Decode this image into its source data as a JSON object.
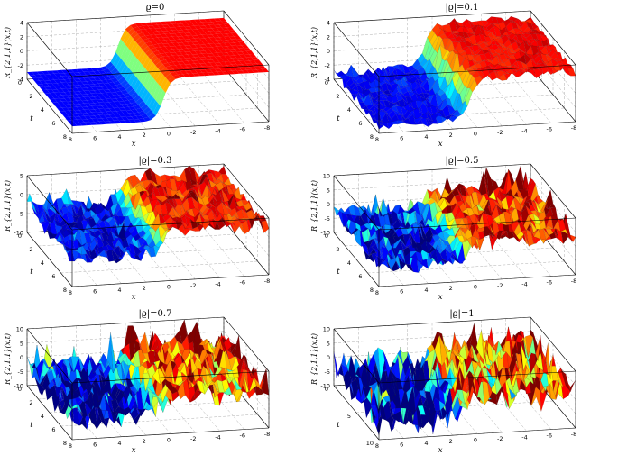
{
  "chart_data": [
    {
      "type": "surface",
      "title": "ϱ=0",
      "noise": 0,
      "zlabel": "R_{2,1,1}(x,t)",
      "xlabel": "x",
      "ylabel": "t",
      "xlim": [
        -8,
        8
      ],
      "ylim": [
        0,
        8
      ],
      "zlim": [
        -4,
        4
      ],
      "x_ticks": [
        "8",
        "6",
        "4",
        "2",
        "0",
        "-2",
        "-4",
        "-6",
        "-8"
      ],
      "y_ticks": [
        "0",
        "2",
        "4",
        "6",
        "8"
      ],
      "z_ticks": [
        "4",
        "2",
        "0",
        "-2",
        "-4"
      ],
      "surface": {
        "low": -3,
        "high": 3,
        "front_value": -3,
        "back_value": 3
      }
    },
    {
      "type": "surface",
      "title": "|ϱ|=0.1",
      "noise": 0.1,
      "zlabel": "R_{2,1,1}(x,t)",
      "xlabel": "x",
      "ylabel": "t",
      "xlim": [
        -8,
        8
      ],
      "ylim": [
        0,
        8
      ],
      "zlim": [
        -4,
        4
      ],
      "x_ticks": [
        "8",
        "6",
        "4",
        "2",
        "0",
        "-2",
        "-4",
        "-6",
        "-8"
      ],
      "y_ticks": [
        "0",
        "2",
        "4",
        "6",
        "8"
      ],
      "z_ticks": [
        "4",
        "2",
        "0",
        "-2",
        "-4"
      ],
      "surface": {
        "low": -3,
        "high": 3
      }
    },
    {
      "type": "surface",
      "title": "|ϱ|=0.3",
      "noise": 0.3,
      "zlabel": "R_{2,1,1}(x,t)",
      "xlabel": "x",
      "ylabel": "t",
      "xlim": [
        -8,
        8
      ],
      "ylim": [
        0,
        8
      ],
      "zlim": [
        -10,
        5
      ],
      "x_ticks": [
        "8",
        "6",
        "4",
        "2",
        "0",
        "-2",
        "-4",
        "-6",
        "-8"
      ],
      "y_ticks": [
        "0",
        "2",
        "4",
        "6",
        "8"
      ],
      "z_ticks": [
        "5",
        "0",
        "-5",
        "-10"
      ],
      "surface": {
        "low": -3,
        "high": 3
      }
    },
    {
      "type": "surface",
      "title": "|ϱ|=0.5",
      "noise": 0.5,
      "zlabel": "R_{2,1,1}(x,t)",
      "xlabel": "x",
      "ylabel": "t",
      "xlim": [
        -8,
        8
      ],
      "ylim": [
        0,
        8
      ],
      "zlim": [
        -10,
        10
      ],
      "x_ticks": [
        "8",
        "6",
        "4",
        "2",
        "0",
        "-2",
        "-4",
        "-6",
        "-8"
      ],
      "y_ticks": [
        "0",
        "2",
        "4",
        "6",
        "8"
      ],
      "z_ticks": [
        "10",
        "5",
        "0",
        "-5",
        "-10"
      ],
      "surface": {
        "low": -3,
        "high": 3
      }
    },
    {
      "type": "surface",
      "title": "|ϱ|=0.7",
      "noise": 0.7,
      "zlabel": "R_{2,1,1}(x,t)",
      "xlabel": "x",
      "ylabel": "t",
      "xlim": [
        -8,
        8
      ],
      "ylim": [
        0,
        8
      ],
      "zlim": [
        -10,
        10
      ],
      "x_ticks": [
        "8",
        "6",
        "4",
        "2",
        "0",
        "-2",
        "-4",
        "-6",
        "-8"
      ],
      "y_ticks": [
        "0",
        "2",
        "4",
        "6",
        "8"
      ],
      "z_ticks": [
        "10",
        "5",
        "0",
        "-5",
        "-10"
      ],
      "surface": {
        "low": -3,
        "high": 3
      }
    },
    {
      "type": "surface",
      "title": "|ϱ|=1",
      "noise": 1,
      "zlabel": "R_{2,1,1}(x,t)",
      "xlabel": "x",
      "ylabel": "t",
      "xlim": [
        -8,
        8
      ],
      "ylim": [
        0,
        10
      ],
      "zlim": [
        -10,
        10
      ],
      "x_ticks": [
        "8",
        "6",
        "4",
        "2",
        "0",
        "-2",
        "-4",
        "-6",
        "-8"
      ],
      "y_ticks": [
        "0",
        "5",
        "10"
      ],
      "z_ticks": [
        "10",
        "5",
        "0",
        "-5",
        "-10"
      ],
      "surface": {
        "low": -3,
        "high": 3
      }
    }
  ],
  "colormap": [
    "#00007f",
    "#0000ff",
    "#007fff",
    "#00ffff",
    "#7fff7f",
    "#ffff00",
    "#ff7f00",
    "#ff0000",
    "#7f0000"
  ]
}
